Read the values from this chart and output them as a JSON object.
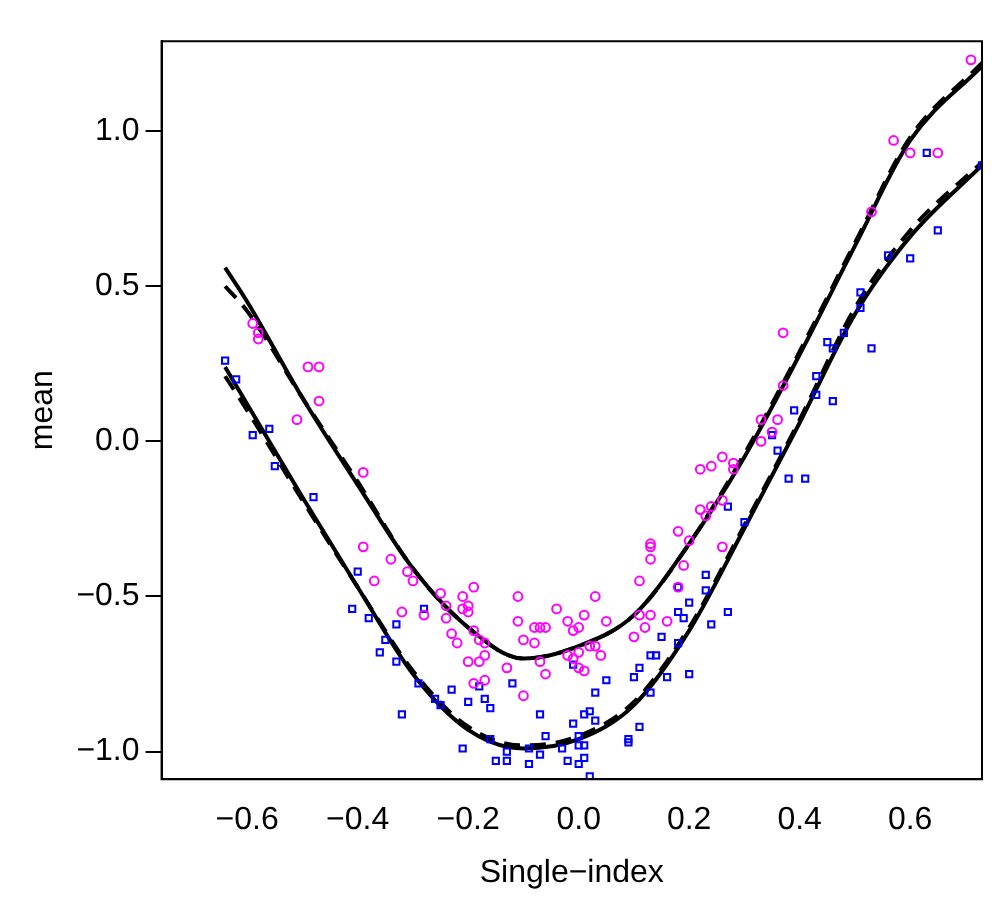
{
  "chart_data": {
    "type": "scatter",
    "xlabel": "Single−index",
    "ylabel": "mean",
    "xlim": [
      -0.755,
      0.73
    ],
    "ylim": [
      -1.089,
      1.29
    ],
    "xticks": [
      {
        "value": -0.6,
        "label": "−0.6"
      },
      {
        "value": -0.4,
        "label": "−0.4"
      },
      {
        "value": -0.2,
        "label": "−0.2"
      },
      {
        "value": 0,
        "label": "0.0"
      },
      {
        "value": 0.2,
        "label": "0.2"
      },
      {
        "value": 0.4,
        "label": "0.4"
      },
      {
        "value": 0.6,
        "label": "0.6"
      }
    ],
    "yticks": [
      {
        "value": -1,
        "label": "−1.0"
      },
      {
        "value": -0.5,
        "label": "−0.5"
      },
      {
        "value": 0,
        "label": "0.0"
      },
      {
        "value": 0.5,
        "label": "0.5"
      },
      {
        "value": 1,
        "label": "1.0"
      }
    ],
    "grid": false,
    "legend": false,
    "series": [
      {
        "type": "scatter",
        "marker": "circle",
        "color": "#ff00ff",
        "x": [
          -0.59,
          -0.58,
          -0.58,
          -0.49,
          -0.47,
          -0.47,
          -0.51,
          -0.39,
          -0.39,
          -0.37,
          -0.34,
          -0.31,
          -0.3,
          -0.32,
          -0.28,
          -0.25,
          -0.24,
          -0.24,
          -0.23,
          -0.22,
          -0.21,
          -0.19,
          -0.2,
          -0.21,
          -0.2,
          -0.19,
          -0.18,
          -0.17,
          -0.2,
          -0.18,
          -0.19,
          -0.17,
          -0.17,
          -0.13,
          -0.11,
          -0.11,
          -0.1,
          -0.1,
          -0.08,
          -0.08,
          -0.07,
          -0.06,
          -0.06,
          -0.07,
          -0.04,
          -0.02,
          -0.01,
          0.0,
          -0.02,
          -0.01,
          0.0,
          0.0,
          0.01,
          0.01,
          0.03,
          0.03,
          0.02,
          0.04,
          0.05,
          0.1,
          0.12,
          0.11,
          0.11,
          0.13,
          0.13,
          0.13,
          0.13,
          0.16,
          0.18,
          0.18,
          0.19,
          0.2,
          0.22,
          0.22,
          0.23,
          0.24,
          0.26,
          0.26,
          0.26,
          0.28,
          0.28,
          0.33,
          0.33,
          0.35,
          0.36,
          0.37,
          0.37,
          0.57,
          0.6,
          0.65,
          0.53,
          0.71,
          0.24
        ],
        "values": [
          0.38,
          0.35,
          0.33,
          0.24,
          0.24,
          0.13,
          0.07,
          -0.1,
          -0.34,
          -0.45,
          -0.38,
          -0.42,
          -0.45,
          -0.55,
          -0.56,
          -0.49,
          -0.53,
          -0.57,
          -0.62,
          -0.65,
          -0.5,
          -0.47,
          -0.55,
          -0.54,
          -0.53,
          -0.61,
          -0.64,
          -0.69,
          -0.71,
          -0.71,
          -0.78,
          -0.77,
          -0.65,
          -0.73,
          -0.58,
          -0.5,
          -0.64,
          -0.82,
          -0.6,
          -0.65,
          -0.6,
          -0.6,
          -0.75,
          -0.71,
          -0.54,
          -0.58,
          -0.61,
          -0.6,
          -0.69,
          -0.7,
          -0.68,
          -0.73,
          -0.74,
          -0.56,
          -0.5,
          -0.66,
          -0.66,
          -0.69,
          -0.58,
          -0.63,
          -0.6,
          -0.56,
          -0.45,
          -0.56,
          -0.34,
          -0.38,
          -0.33,
          -0.58,
          -0.29,
          -0.47,
          -0.4,
          -0.32,
          -0.22,
          -0.09,
          -0.24,
          -0.08,
          -0.19,
          -0.05,
          -0.34,
          -0.07,
          -0.09,
          0.07,
          0.0,
          0.03,
          0.07,
          0.18,
          0.35,
          0.97,
          0.93,
          0.93,
          0.74,
          1.23,
          -0.21
        ]
      },
      {
        "type": "scatter",
        "marker": "square",
        "color": "#0000ff",
        "x": [
          -0.64,
          -0.62,
          -0.59,
          -0.56,
          -0.55,
          -0.48,
          -0.4,
          -0.41,
          -0.38,
          -0.36,
          -0.35,
          -0.33,
          -0.33,
          -0.32,
          -0.29,
          -0.28,
          -0.26,
          -0.25,
          -0.23,
          -0.2,
          -0.21,
          -0.18,
          -0.17,
          -0.16,
          -0.16,
          -0.15,
          -0.13,
          -0.13,
          -0.12,
          -0.09,
          -0.09,
          -0.07,
          -0.07,
          -0.06,
          -0.03,
          -0.02,
          -0.01,
          -0.01,
          0.0,
          0.0,
          0.01,
          0.01,
          0.01,
          0.02,
          0.0,
          0.02,
          0.03,
          0.03,
          0.05,
          0.09,
          0.09,
          0.11,
          0.1,
          0.11,
          0.13,
          0.14,
          0.13,
          0.15,
          0.16,
          0.18,
          0.18,
          0.18,
          0.19,
          0.2,
          0.2,
          0.23,
          0.23,
          0.24,
          0.27,
          0.27,
          0.3,
          0.35,
          0.36,
          0.38,
          0.39,
          0.41,
          0.43,
          0.43,
          0.46,
          0.45,
          0.46,
          0.48,
          0.51,
          0.51,
          0.53,
          0.56,
          0.6,
          0.63,
          0.65,
          0.73
        ],
        "values": [
          0.26,
          0.2,
          0.02,
          0.04,
          -0.08,
          -0.18,
          -0.42,
          -0.54,
          -0.57,
          -0.68,
          -0.64,
          -0.59,
          -0.71,
          -0.88,
          -0.78,
          -0.54,
          -0.83,
          -0.85,
          -0.8,
          -0.84,
          -0.99,
          -0.79,
          -0.83,
          -0.86,
          -0.96,
          -1.03,
          -1.03,
          -1.0,
          -0.78,
          -0.99,
          -1.04,
          -1.01,
          -0.88,
          -0.95,
          -0.99,
          -1.03,
          -0.72,
          -0.91,
          -1.04,
          -0.98,
          -0.98,
          -1.02,
          -0.88,
          -1.08,
          -0.95,
          -0.87,
          -0.9,
          -0.81,
          -0.77,
          -0.96,
          -0.97,
          -0.92,
          -0.76,
          -0.73,
          -0.69,
          -0.69,
          -0.81,
          -0.63,
          -0.76,
          -0.65,
          -0.47,
          -0.55,
          -0.57,
          -0.75,
          -0.52,
          -0.43,
          -0.48,
          -0.59,
          -0.55,
          -0.21,
          -0.26,
          0.02,
          -0.03,
          -0.12,
          0.1,
          -0.12,
          0.21,
          0.15,
          0.13,
          0.32,
          0.3,
          0.35,
          0.48,
          0.43,
          0.3,
          0.6,
          0.59,
          0.93,
          0.68,
          0.89
        ]
      },
      {
        "type": "line",
        "marker": "none",
        "line_style": "solid",
        "color": "#000000",
        "x": [
          -0.64,
          -0.6,
          -0.5,
          -0.4,
          -0.3,
          -0.2,
          -0.1,
          0.0,
          0.1,
          0.2,
          0.3,
          0.4,
          0.5,
          0.6,
          0.73
        ],
        "values": [
          0.56,
          0.45,
          0.14,
          -0.14,
          -0.41,
          -0.6,
          -0.7,
          -0.66,
          -0.56,
          -0.33,
          -0.05,
          0.28,
          0.63,
          0.97,
          1.21
        ]
      },
      {
        "type": "line",
        "marker": "none",
        "line_style": "dashed",
        "color": "#000000",
        "x": [
          -0.64,
          -0.6,
          -0.5,
          -0.4,
          -0.3,
          -0.2,
          -0.1,
          0.0,
          0.1,
          0.2,
          0.3,
          0.4,
          0.5,
          0.6,
          0.73
        ],
        "values": [
          0.5,
          0.42,
          0.14,
          -0.13,
          -0.41,
          -0.6,
          -0.7,
          -0.66,
          -0.56,
          -0.33,
          -0.04,
          0.29,
          0.64,
          0.98,
          1.22
        ]
      },
      {
        "type": "line",
        "marker": "none",
        "line_style": "solid",
        "color": "#000000",
        "x": [
          -0.64,
          -0.6,
          -0.5,
          -0.4,
          -0.3,
          -0.2,
          -0.1,
          0.0,
          0.1,
          0.2,
          0.3,
          0.4,
          0.5,
          0.6,
          0.73
        ],
        "values": [
          0.24,
          0.12,
          -0.18,
          -0.47,
          -0.75,
          -0.93,
          -0.99,
          -0.96,
          -0.85,
          -0.61,
          -0.28,
          0.06,
          0.41,
          0.66,
          0.89
        ]
      },
      {
        "type": "line",
        "marker": "none",
        "line_style": "dashed",
        "color": "#000000",
        "x": [
          -0.64,
          -0.6,
          -0.5,
          -0.4,
          -0.3,
          -0.2,
          -0.1,
          0.0,
          0.1,
          0.2,
          0.3,
          0.4,
          0.5,
          0.6,
          0.73
        ],
        "values": [
          0.21,
          0.1,
          -0.19,
          -0.47,
          -0.74,
          -0.92,
          -0.98,
          -0.95,
          -0.84,
          -0.6,
          -0.27,
          0.07,
          0.43,
          0.68,
          0.9
        ]
      }
    ]
  }
}
